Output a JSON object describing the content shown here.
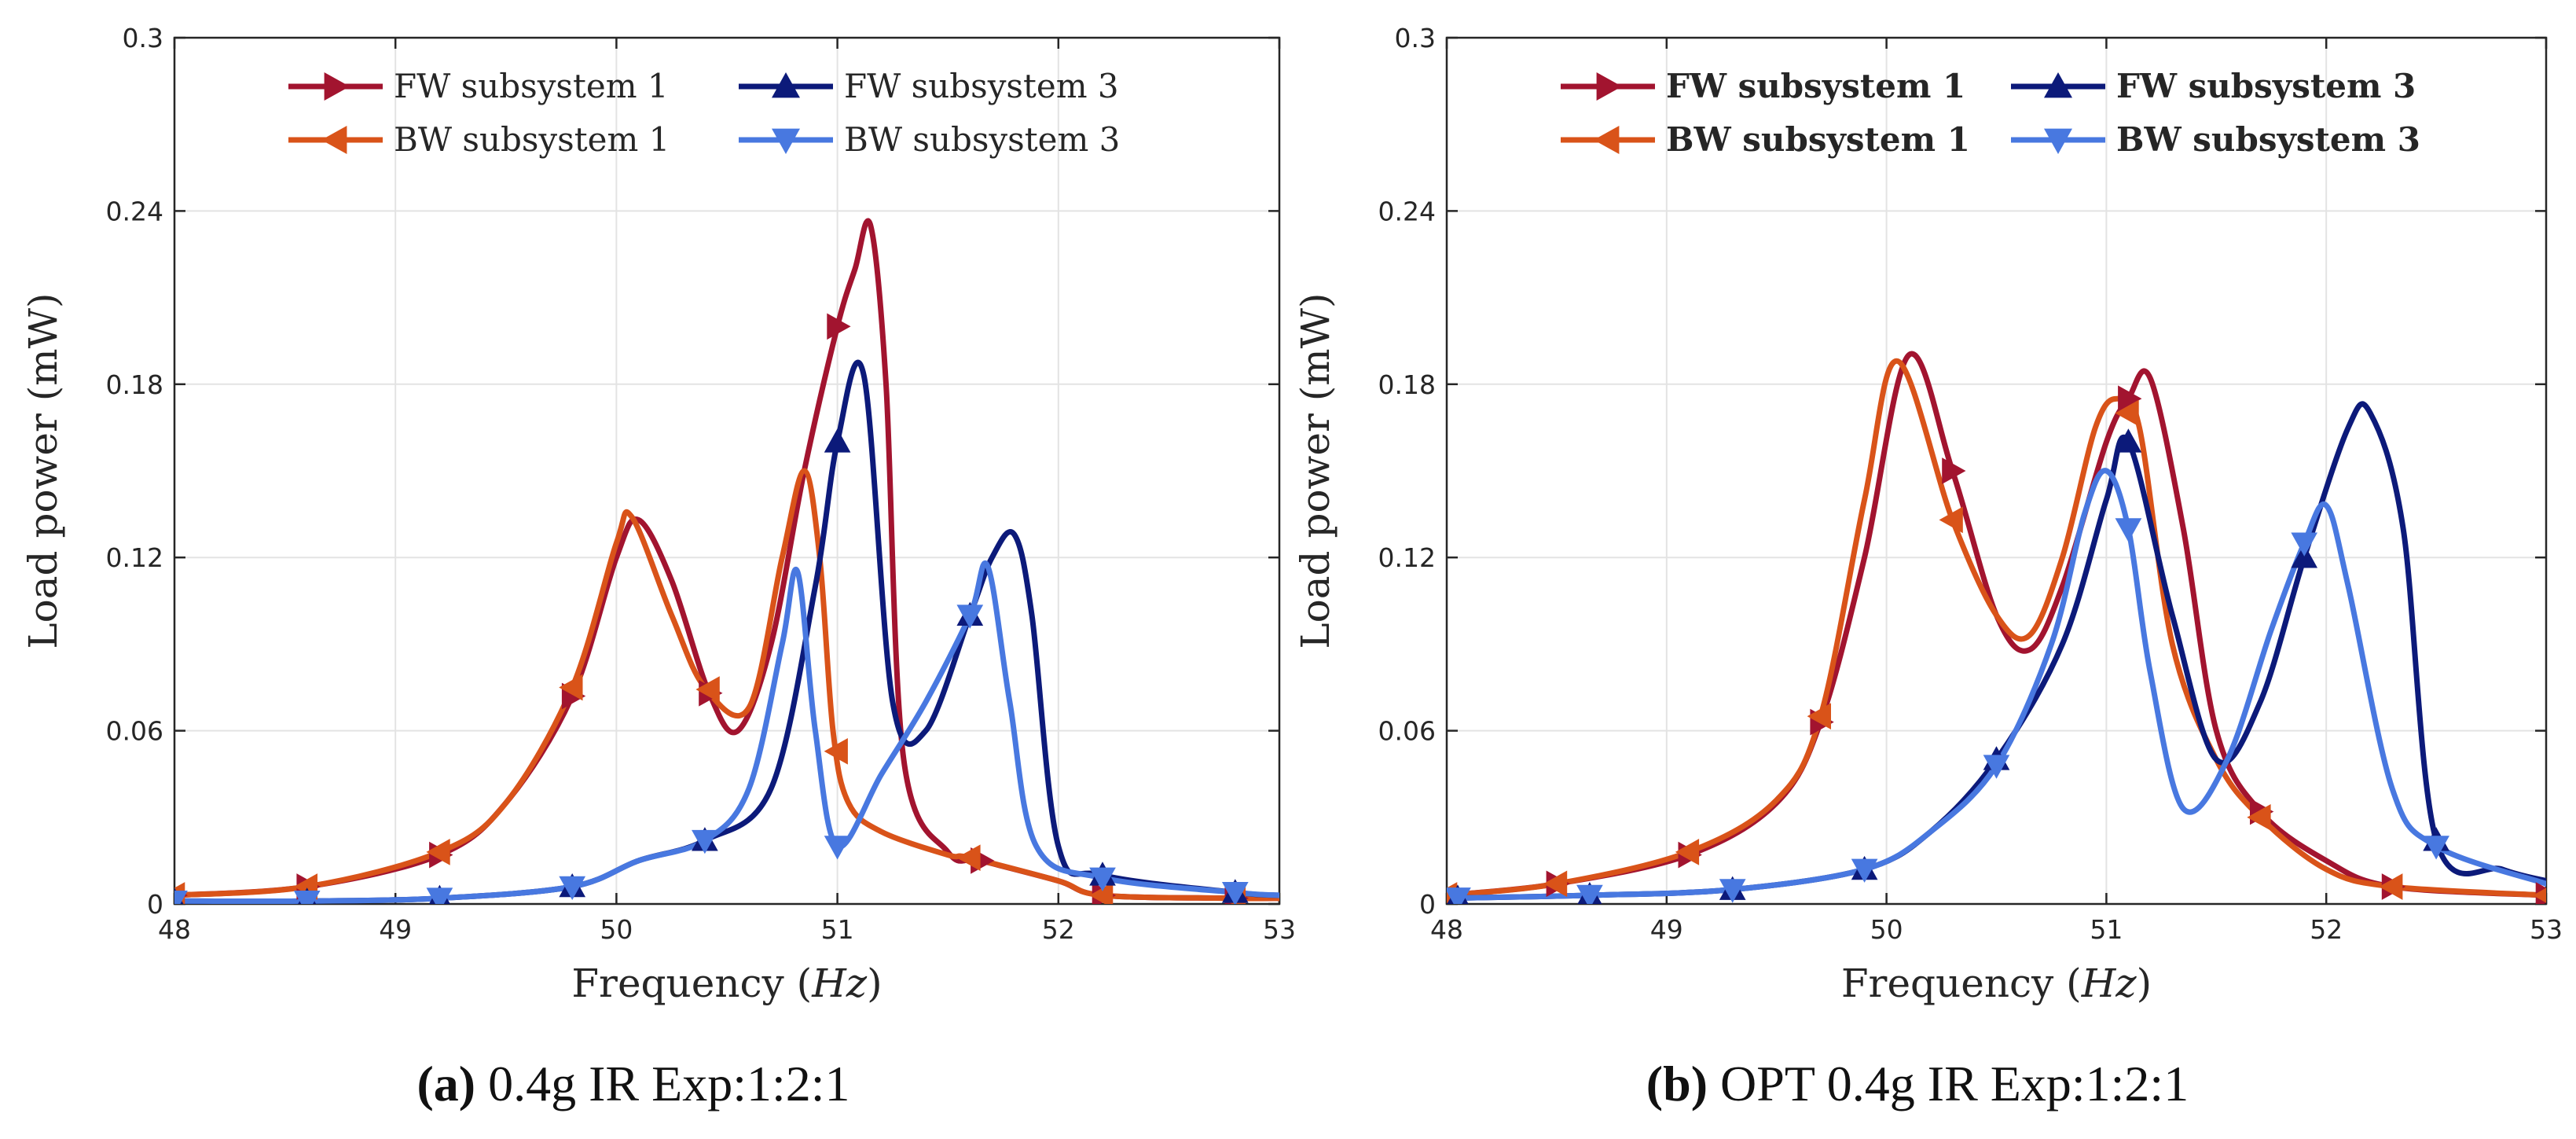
{
  "figure": {
    "panels": [
      {
        "caption_letter": "(a)",
        "caption_text": " 0.4g IR Exp:1:2:1"
      },
      {
        "caption_letter": "(b)",
        "caption_text": " OPT 0.4g IR Exp:1:2:1"
      }
    ]
  },
  "chart_data": [
    {
      "type": "line",
      "title": "",
      "xlabel": "Frequency (Hz)",
      "ylabel": "Load power (mW)",
      "xlim": [
        48,
        53
      ],
      "ylim": [
        0,
        0.3
      ],
      "xticks": [
        "48",
        "49",
        "50",
        "51",
        "52",
        "53"
      ],
      "yticks": [
        "0",
        "0.06",
        "0.12",
        "0.18",
        "0.24",
        "0.3"
      ],
      "grid": true,
      "legend_position": "top",
      "legend_bold": false,
      "series": [
        {
          "name": "FW subsystem 1",
          "color": "#A2142F",
          "marker": "triangle-right",
          "x": [
            48.0,
            48.6,
            49.2,
            49.5,
            49.8,
            50.0,
            50.1,
            50.25,
            50.42,
            50.55,
            50.7,
            50.85,
            51.0,
            51.08,
            51.15,
            51.22,
            51.3,
            51.5,
            51.65,
            52.0,
            52.2,
            52.8,
            53.0
          ],
          "y": [
            0.003,
            0.006,
            0.017,
            0.035,
            0.072,
            0.12,
            0.133,
            0.112,
            0.073,
            0.06,
            0.09,
            0.15,
            0.2,
            0.22,
            0.235,
            0.18,
            0.05,
            0.018,
            0.015,
            0.008,
            0.003,
            0.002,
            0.002
          ],
          "markers_x": [
            48.0,
            48.6,
            49.2,
            49.8,
            50.42,
            51.0,
            51.65,
            52.2,
            52.8
          ]
        },
        {
          "name": "BW subsystem 1",
          "color": "#D95319",
          "marker": "triangle-left",
          "x": [
            48.0,
            48.6,
            49.2,
            49.5,
            49.8,
            50.0,
            50.07,
            50.25,
            50.4,
            50.6,
            50.75,
            50.85,
            50.92,
            50.98,
            51.05,
            51.2,
            51.5,
            51.6,
            52.0,
            52.2,
            52.8,
            53.0
          ],
          "y": [
            0.003,
            0.006,
            0.018,
            0.035,
            0.075,
            0.125,
            0.134,
            0.1,
            0.075,
            0.068,
            0.12,
            0.15,
            0.12,
            0.06,
            0.035,
            0.025,
            0.017,
            0.016,
            0.008,
            0.003,
            0.002,
            0.002
          ],
          "markers_x": [
            48.0,
            48.6,
            49.2,
            49.8,
            50.42,
            51.0,
            51.6,
            52.2,
            52.8
          ]
        },
        {
          "name": "FW subsystem 3",
          "color": "#0C1A7A",
          "marker": "triangle-up",
          "x": [
            48.0,
            48.6,
            49.2,
            49.8,
            50.1,
            50.4,
            50.7,
            50.9,
            51.0,
            51.12,
            51.25,
            51.4,
            51.6,
            51.7,
            51.8,
            51.88,
            52.0,
            52.2,
            52.8,
            53.0
          ],
          "y": [
            0.001,
            0.001,
            0.002,
            0.006,
            0.015,
            0.022,
            0.04,
            0.11,
            0.16,
            0.183,
            0.07,
            0.06,
            0.1,
            0.12,
            0.128,
            0.1,
            0.02,
            0.01,
            0.004,
            0.003
          ],
          "markers_x": [
            48.0,
            48.6,
            49.2,
            49.8,
            50.4,
            51.0,
            51.6,
            52.2,
            52.8
          ]
        },
        {
          "name": "BW subsystem 3",
          "color": "#4878E0",
          "marker": "triangle-down",
          "x": [
            48.0,
            48.6,
            49.2,
            49.8,
            50.1,
            50.4,
            50.6,
            50.75,
            50.82,
            50.9,
            51.0,
            51.2,
            51.4,
            51.6,
            51.68,
            51.78,
            51.9,
            52.2,
            52.8,
            53.0
          ],
          "y": [
            0.001,
            0.001,
            0.002,
            0.006,
            0.015,
            0.022,
            0.04,
            0.09,
            0.115,
            0.06,
            0.02,
            0.045,
            0.07,
            0.1,
            0.117,
            0.07,
            0.02,
            0.009,
            0.004,
            0.003
          ],
          "markers_x": [
            48.0,
            48.6,
            49.2,
            49.8,
            50.4,
            51.0,
            51.6,
            52.2,
            52.8
          ]
        }
      ]
    },
    {
      "type": "line",
      "title": "",
      "xlabel": "Frequency (Hz)",
      "ylabel": "Load power (mW)",
      "xlim": [
        48,
        53
      ],
      "ylim": [
        0,
        0.3
      ],
      "xticks": [
        "48",
        "49",
        "50",
        "51",
        "52",
        "53"
      ],
      "yticks": [
        "0",
        "0.06",
        "0.12",
        "0.18",
        "0.24",
        "0.3"
      ],
      "grid": true,
      "legend_position": "top",
      "legend_bold": true,
      "series": [
        {
          "name": "FW subsystem 1",
          "color": "#A2142F",
          "marker": "triangle-right",
          "x": [
            48.0,
            48.5,
            49.1,
            49.5,
            49.7,
            49.9,
            50.1,
            50.3,
            50.5,
            50.65,
            50.8,
            51.0,
            51.1,
            51.2,
            51.35,
            51.5,
            51.7,
            52.0,
            52.3,
            53.0
          ],
          "y": [
            0.003,
            0.007,
            0.017,
            0.035,
            0.063,
            0.12,
            0.19,
            0.15,
            0.1,
            0.088,
            0.11,
            0.16,
            0.175,
            0.182,
            0.13,
            0.06,
            0.032,
            0.015,
            0.006,
            0.003
          ],
          "markers_x": [
            48.0,
            48.5,
            49.1,
            49.7,
            50.3,
            51.1,
            51.7,
            52.3,
            53.0
          ]
        },
        {
          "name": "BW subsystem 1",
          "color": "#D95319",
          "marker": "triangle-left",
          "x": [
            48.0,
            48.5,
            49.1,
            49.5,
            49.7,
            49.9,
            50.05,
            50.3,
            50.5,
            50.65,
            50.8,
            50.95,
            51.05,
            51.15,
            51.3,
            51.5,
            51.7,
            52.0,
            52.3,
            53.0
          ],
          "y": [
            0.003,
            0.007,
            0.018,
            0.036,
            0.065,
            0.14,
            0.188,
            0.133,
            0.1,
            0.093,
            0.12,
            0.165,
            0.175,
            0.165,
            0.09,
            0.05,
            0.03,
            0.012,
            0.006,
            0.003
          ],
          "markers_x": [
            48.0,
            48.5,
            49.1,
            49.7,
            50.3,
            51.1,
            51.7,
            52.3,
            53.0
          ]
        },
        {
          "name": "FW subsystem 3",
          "color": "#0C1A7A",
          "marker": "triangle-up",
          "x": [
            48.0,
            48.65,
            49.3,
            49.9,
            50.2,
            50.5,
            50.8,
            51.0,
            51.1,
            51.3,
            51.5,
            51.7,
            51.9,
            52.1,
            52.2,
            52.35,
            52.5,
            52.8,
            53.0
          ],
          "y": [
            0.002,
            0.003,
            0.005,
            0.012,
            0.025,
            0.05,
            0.09,
            0.14,
            0.16,
            0.1,
            0.05,
            0.07,
            0.12,
            0.165,
            0.17,
            0.13,
            0.022,
            0.012,
            0.008
          ],
          "markers_x": [
            48.05,
            48.65,
            49.3,
            49.9,
            50.5,
            51.1,
            51.9,
            52.5
          ]
        },
        {
          "name": "BW subsystem 3",
          "color": "#4878E0",
          "marker": "triangle-down",
          "x": [
            48.0,
            48.65,
            49.3,
            49.9,
            50.2,
            50.5,
            50.75,
            50.9,
            51.0,
            51.1,
            51.2,
            51.35,
            51.55,
            51.75,
            51.9,
            52.0,
            52.1,
            52.3,
            52.5,
            53.0
          ],
          "y": [
            0.002,
            0.003,
            0.005,
            0.012,
            0.025,
            0.048,
            0.09,
            0.135,
            0.15,
            0.13,
            0.08,
            0.033,
            0.05,
            0.095,
            0.125,
            0.138,
            0.11,
            0.04,
            0.02,
            0.007
          ],
          "markers_x": [
            48.05,
            48.65,
            49.3,
            49.9,
            50.5,
            51.1,
            51.9,
            52.5
          ]
        }
      ]
    }
  ]
}
